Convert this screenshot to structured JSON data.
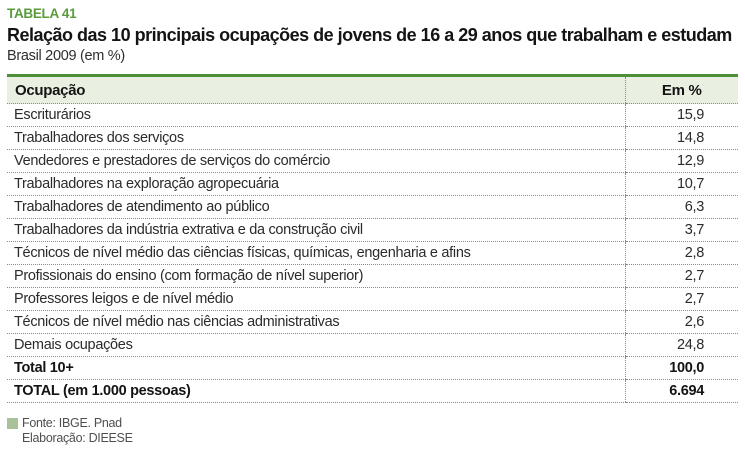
{
  "header": {
    "table_label": "TABELA 41",
    "title": "Relação das 10 principais ocupações de jovens de 16 a 29 anos que trabalham e estudam",
    "subtitle": "Brasil 2009 (em %)"
  },
  "table": {
    "columns": [
      "Ocupação",
      "Em %"
    ],
    "rows": [
      {
        "label": "Escriturários",
        "value": "15,9",
        "bold": false
      },
      {
        "label": "Trabalhadores dos serviços",
        "value": "14,8",
        "bold": false
      },
      {
        "label": "Vendedores e prestadores de serviços do comércio",
        "value": "12,9",
        "bold": false
      },
      {
        "label": "Trabalhadores na exploração agropecuária",
        "value": "10,7",
        "bold": false
      },
      {
        "label": "Trabalhadores de atendimento ao público",
        "value": "6,3",
        "bold": false
      },
      {
        "label": "Trabalhadores da indústria extrativa e da construção civil",
        "value": "3,7",
        "bold": false
      },
      {
        "label": "Técnicos de nível médio das ciências físicas, químicas, engenharia e afins",
        "value": "2,8",
        "bold": false
      },
      {
        "label": "Profissionais do ensino (com formação de nível superior)",
        "value": "2,7",
        "bold": false
      },
      {
        "label": "Professores leigos e de nível médio",
        "value": "2,7",
        "bold": false
      },
      {
        "label": "Técnicos de nível médio nas ciências administrativas",
        "value": "2,6",
        "bold": false
      },
      {
        "label": "Demais ocupações",
        "value": "24,8",
        "bold": false
      },
      {
        "label": "Total 10+",
        "value": "100,0",
        "bold": true
      },
      {
        "label": "TOTAL (em 1.000 pessoas)",
        "value": "6.694",
        "bold": true
      }
    ]
  },
  "footer": {
    "source": "Fonte: IBGE. Pnad",
    "elaboration": "Elaboração: DIEESE"
  },
  "colors": {
    "accent_green": "#5a9b3c",
    "table_top_rule": "#4e8f39",
    "header_row_bg": "#e9efe1",
    "footnote_square": "#a9c29a",
    "dotted_rule": "#8b8b8b"
  }
}
